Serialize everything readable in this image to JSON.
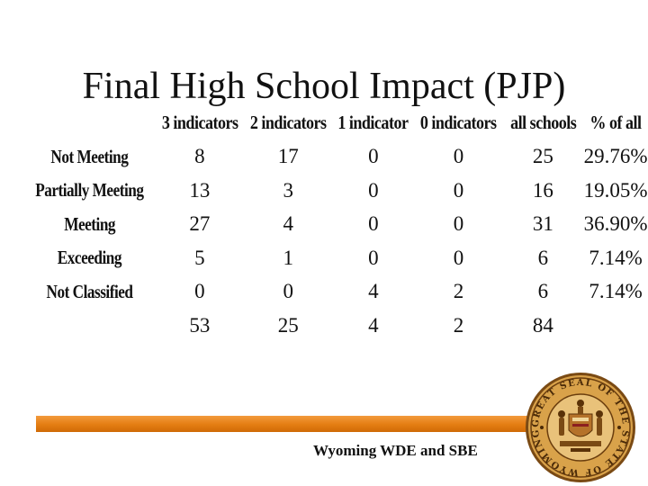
{
  "slide": {
    "title": "Final High School Impact (PJP)"
  },
  "table": {
    "headers": [
      "3 indicators",
      "2 indicators",
      "1 indicator",
      "0 indicators",
      "all schools",
      "% of all"
    ],
    "rows": [
      {
        "label": "Not Meeting",
        "values": [
          "8",
          "17",
          "0",
          "0",
          "25",
          "29.76%"
        ]
      },
      {
        "label": "Partially Meeting",
        "values": [
          "13",
          "3",
          "0",
          "0",
          "16",
          "19.05%"
        ]
      },
      {
        "label": "Meeting",
        "values": [
          "27",
          "4",
          "0",
          "0",
          "31",
          "36.90%"
        ]
      },
      {
        "label": "Exceeding",
        "values": [
          "5",
          "1",
          "0",
          "0",
          "6",
          "7.14%"
        ]
      },
      {
        "label": "Not Classified",
        "values": [
          "0",
          "0",
          "4",
          "2",
          "6",
          "7.14%"
        ]
      },
      {
        "label": "",
        "values": [
          "53",
          "25",
          "4",
          "2",
          "84",
          ""
        ]
      }
    ]
  },
  "footer": {
    "text": "Wyoming WDE and SBE",
    "bar_color": "#e8821a",
    "seal_text": "GREAT SEAL OF THE STATE OF WYOMING"
  }
}
